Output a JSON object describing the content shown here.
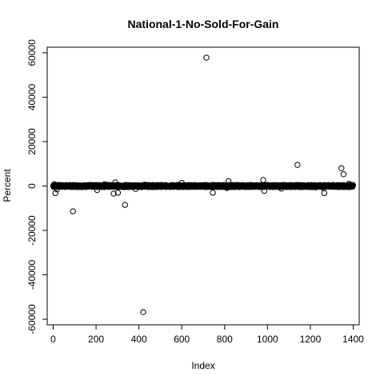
{
  "chart_data": {
    "type": "scatter",
    "title": "National-1-No-Sold-For-Gain",
    "xlabel": "Index",
    "ylabel": "Percent",
    "xlim": [
      -28,
      1428
    ],
    "ylim": [
      -62500,
      62500
    ],
    "xticks": [
      0,
      200,
      400,
      600,
      800,
      1000,
      1200,
      1400
    ],
    "yticks": [
      -60000,
      -40000,
      -20000,
      0,
      20000,
      40000,
      60000
    ],
    "baseline_band": {
      "x_range": [
        0,
        1400
      ],
      "y": 0,
      "spread": 900,
      "count": 1400
    },
    "outliers": [
      {
        "x": 5,
        "y": 800
      },
      {
        "x": 10,
        "y": -3200
      },
      {
        "x": 18,
        "y": -1500
      },
      {
        "x": 35,
        "y": 400
      },
      {
        "x": 92,
        "y": -11400
      },
      {
        "x": 205,
        "y": -1800
      },
      {
        "x": 240,
        "y": 800
      },
      {
        "x": 262,
        "y": -400
      },
      {
        "x": 282,
        "y": -3400
      },
      {
        "x": 290,
        "y": 1600
      },
      {
        "x": 302,
        "y": -3000
      },
      {
        "x": 335,
        "y": -8500
      },
      {
        "x": 385,
        "y": -1300
      },
      {
        "x": 420,
        "y": -56800
      },
      {
        "x": 430,
        "y": 600
      },
      {
        "x": 455,
        "y": 300
      },
      {
        "x": 600,
        "y": 1400
      },
      {
        "x": 715,
        "y": 57800
      },
      {
        "x": 745,
        "y": -3000
      },
      {
        "x": 810,
        "y": -900
      },
      {
        "x": 818,
        "y": 2200
      },
      {
        "x": 980,
        "y": 2700
      },
      {
        "x": 985,
        "y": -2200
      },
      {
        "x": 1065,
        "y": -1200
      },
      {
        "x": 1100,
        "y": -400
      },
      {
        "x": 1140,
        "y": 9500
      },
      {
        "x": 1225,
        "y": -600
      },
      {
        "x": 1260,
        "y": -900
      },
      {
        "x": 1265,
        "y": -3200
      },
      {
        "x": 1345,
        "y": 8000
      },
      {
        "x": 1355,
        "y": 5300
      },
      {
        "x": 1380,
        "y": 1000
      },
      {
        "x": 1390,
        "y": -300
      }
    ]
  }
}
